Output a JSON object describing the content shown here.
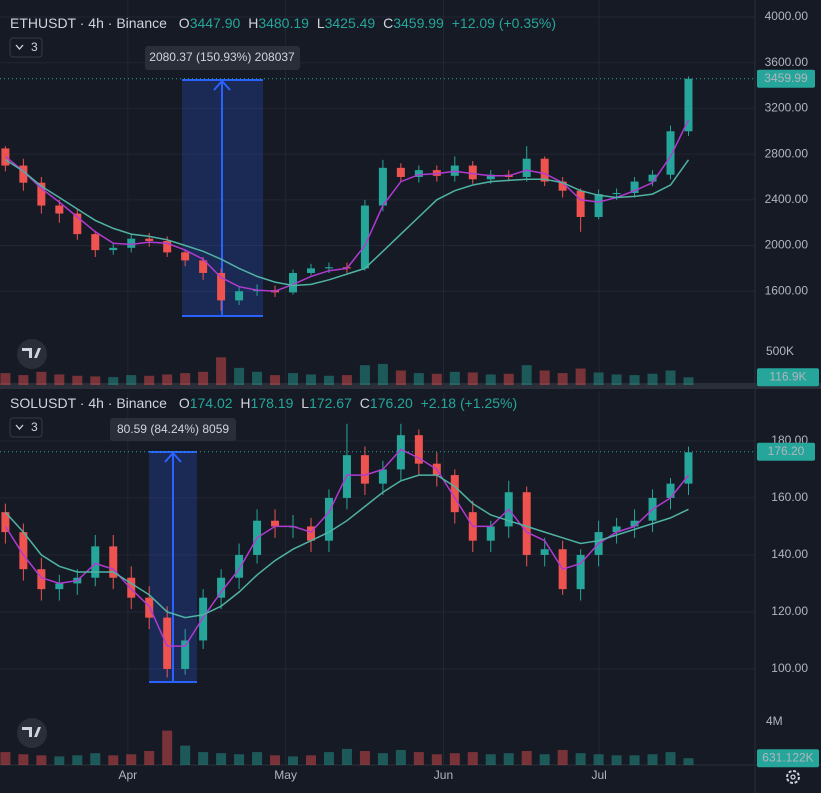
{
  "chart_data": [
    {
      "type": "candlestick",
      "header": {
        "symbol": "ETHUSDT · 4h · Binance",
        "open_label": "O",
        "open": "3447.90",
        "high_label": "H",
        "high": "3480.19",
        "low_label": "L",
        "low": "3425.49",
        "close_label": "C",
        "close": "3459.99",
        "change": "+12.09 (+0.35%)"
      },
      "indicator_count": "3",
      "measure": "2080.37 (150.93%) 208037",
      "up_color": "#26a69a",
      "down_color": "#ef5350",
      "xlim": [
        -0.3,
        41.7
      ],
      "x": [
        0,
        1,
        2,
        3,
        4,
        5,
        6,
        7,
        8,
        9,
        10,
        11,
        12,
        13,
        14,
        15,
        16,
        17,
        18,
        19,
        20,
        21,
        22,
        23,
        24,
        25,
        26,
        27,
        28,
        29,
        30,
        31,
        32,
        33,
        34,
        35,
        36,
        37,
        38
      ],
      "open": [
        2850,
        2700,
        2550,
        2350,
        2280,
        2100,
        1960,
        1980,
        2060,
        2040,
        1940,
        1870,
        1760,
        1520,
        1600,
        1610,
        1590,
        1760,
        1800,
        1810,
        1800,
        2350,
        2680,
        2600,
        2660,
        2610,
        2700,
        2580,
        2620,
        2600,
        2760,
        2560,
        2480,
        2250,
        2450,
        2460,
        2560,
        2620,
        3000
      ],
      "high": [
        2870,
        2760,
        2600,
        2400,
        2320,
        2130,
        2020,
        2100,
        2110,
        2080,
        1960,
        1900,
        1800,
        1640,
        1660,
        1650,
        1790,
        1840,
        1850,
        1850,
        2400,
        2750,
        2720,
        2700,
        2700,
        2780,
        2740,
        2660,
        2660,
        2870,
        2780,
        2600,
        2500,
        2490,
        2500,
        2600,
        2660,
        3050,
        3480
      ],
      "low": [
        2650,
        2480,
        2280,
        2200,
        2050,
        1900,
        1920,
        1940,
        1990,
        1900,
        1820,
        1700,
        1430,
        1480,
        1560,
        1550,
        1570,
        1740,
        1760,
        1760,
        1780,
        2300,
        2560,
        2550,
        2560,
        2560,
        2540,
        2540,
        2560,
        2560,
        2520,
        2420,
        2120,
        2230,
        2400,
        2420,
        2520,
        2580,
        2960
      ],
      "close": [
        2700,
        2550,
        2350,
        2280,
        2100,
        1960,
        1980,
        2060,
        2040,
        1940,
        1870,
        1760,
        1520,
        1600,
        1610,
        1590,
        1760,
        1800,
        1810,
        1800,
        2350,
        2680,
        2600,
        2660,
        2610,
        2700,
        2580,
        2620,
        2600,
        2760,
        2560,
        2480,
        2250,
        2450,
        2460,
        2560,
        2620,
        3000,
        3460
      ],
      "overlays": [
        {
          "color": "#b03bd1",
          "values": [
            2780,
            2650,
            2500,
            2380,
            2250,
            2120,
            2020,
            2010,
            2030,
            2020,
            1960,
            1880,
            1720,
            1640,
            1610,
            1600,
            1660,
            1730,
            1780,
            1800,
            2000,
            2350,
            2560,
            2620,
            2630,
            2650,
            2630,
            2610,
            2610,
            2660,
            2630,
            2550,
            2400,
            2380,
            2420,
            2480,
            2550,
            2780,
            3100
          ]
        },
        {
          "color": "#4fb3a4",
          "values": [
            2750,
            2650,
            2520,
            2420,
            2320,
            2220,
            2150,
            2100,
            2080,
            2050,
            2000,
            1950,
            1880,
            1800,
            1730,
            1680,
            1650,
            1660,
            1700,
            1750,
            1800,
            1950,
            2100,
            2250,
            2400,
            2480,
            2530,
            2560,
            2570,
            2580,
            2580,
            2550,
            2480,
            2440,
            2420,
            2430,
            2450,
            2530,
            2750
          ]
        }
      ],
      "ylim": [
        1217,
        4149
      ],
      "yticks": [
        {
          "value": 4000,
          "label": "4000.00"
        },
        {
          "value": 3600,
          "label": "3600.00"
        },
        {
          "value": 3200,
          "label": "3200.00"
        },
        {
          "value": 2800,
          "label": "2800.00"
        },
        {
          "value": 2400,
          "label": "2400.00"
        },
        {
          "value": 2000,
          "label": "2000.00"
        },
        {
          "value": 1600,
          "label": "1600.00"
        }
      ],
      "last_price": {
        "value": 3459.99,
        "label": "3459.99"
      },
      "volume": [
        180000,
        150000,
        200000,
        160000,
        140000,
        130000,
        120000,
        150000,
        140000,
        160000,
        180000,
        200000,
        420000,
        260000,
        200000,
        150000,
        180000,
        160000,
        140000,
        150000,
        300000,
        320000,
        220000,
        180000,
        170000,
        200000,
        190000,
        160000,
        170000,
        300000,
        220000,
        180000,
        250000,
        190000,
        160000,
        150000,
        170000,
        220000,
        116900
      ],
      "volume_ylim": [
        0,
        758000
      ],
      "volume_yticks": [
        {
          "value": 500000,
          "label": "500K"
        }
      ],
      "last_volume": {
        "value": 116900,
        "label": "116.9K"
      }
    },
    {
      "type": "candlestick",
      "header": {
        "symbol": "SOLUSDT · 4h · Binance",
        "open_label": "O",
        "open": "174.02",
        "high_label": "H",
        "high": "178.19",
        "low_label": "L",
        "low": "172.67",
        "close_label": "C",
        "close": "176.20",
        "change": "+2.18 (+1.25%)"
      },
      "indicator_count": "3",
      "measure": "80.59 (84.24%) 8059",
      "up_color": "#26a69a",
      "down_color": "#ef5350",
      "xlim": [
        -0.3,
        41.7
      ],
      "xticks": [
        {
          "value": 6.81,
          "label": "Apr"
        },
        {
          "value": 15.59,
          "label": "May"
        },
        {
          "value": 24.37,
          "label": "Jun"
        },
        {
          "value": 33.03,
          "label": "Jul"
        }
      ],
      "x": [
        0,
        1,
        2,
        3,
        4,
        5,
        6,
        7,
        8,
        9,
        10,
        11,
        12,
        13,
        14,
        15,
        16,
        17,
        18,
        19,
        20,
        21,
        22,
        23,
        24,
        25,
        26,
        27,
        28,
        29,
        30,
        31,
        32,
        33,
        34,
        35,
        36,
        37,
        38
      ],
      "open": [
        155,
        148,
        135,
        128,
        130,
        132,
        143,
        132,
        125,
        118,
        100,
        110,
        125,
        132,
        140,
        152,
        150,
        150,
        145,
        160,
        175,
        165,
        170,
        182,
        172,
        168,
        155,
        145,
        150,
        162,
        140,
        142,
        128,
        140,
        148,
        150,
        152,
        160,
        165
      ],
      "high": [
        158,
        151,
        139,
        133,
        135,
        147,
        147,
        136,
        129,
        122,
        114,
        128,
        135,
        144,
        156,
        156,
        154,
        153,
        163,
        186,
        178,
        173,
        186,
        184,
        176,
        170,
        159,
        152,
        166,
        164,
        146,
        145,
        142,
        152,
        153,
        156,
        163,
        167,
        178
      ],
      "low": [
        144,
        131,
        124,
        124,
        126,
        129,
        128,
        121,
        114,
        97,
        98,
        107,
        121,
        128,
        137,
        146,
        146,
        141,
        141,
        156,
        161,
        161,
        166,
        168,
        164,
        151,
        141,
        141,
        146,
        136,
        136,
        126,
        124,
        136,
        144,
        146,
        148,
        156,
        161
      ],
      "close": [
        148,
        135,
        128,
        130,
        132,
        143,
        132,
        125,
        118,
        100,
        110,
        125,
        132,
        140,
        152,
        150,
        150,
        145,
        160,
        175,
        165,
        170,
        182,
        172,
        168,
        155,
        145,
        150,
        162,
        140,
        142,
        128,
        140,
        148,
        150,
        152,
        160,
        165,
        176
      ],
      "overlays": [
        {
          "color": "#b03bd1",
          "values": [
            150,
            140,
            132,
            130,
            131,
            137,
            135,
            128,
            122,
            108,
            108,
            118,
            127,
            135,
            146,
            150,
            150,
            148,
            155,
            168,
            168,
            170,
            177,
            174,
            170,
            160,
            150,
            150,
            156,
            148,
            145,
            135,
            137,
            144,
            148,
            150,
            156,
            160,
            168
          ]
        },
        {
          "color": "#4fb3a4",
          "values": [
            155,
            148,
            140,
            136,
            134,
            134,
            134,
            130,
            126,
            120,
            118,
            119,
            122,
            127,
            133,
            138,
            142,
            145,
            148,
            152,
            157,
            162,
            166,
            168,
            168,
            164,
            158,
            154,
            152,
            150,
            148,
            146,
            144,
            145,
            147,
            149,
            151,
            153,
            156
          ]
        }
      ],
      "ylim": [
        84.9,
        196.8
      ],
      "yticks": [
        {
          "value": 180,
          "label": "180.00"
        },
        {
          "value": 160,
          "label": "160.00"
        },
        {
          "value": 140,
          "label": "140.00"
        },
        {
          "value": 120,
          "label": "120.00"
        },
        {
          "value": 100,
          "label": "100.00"
        }
      ],
      "last_price": {
        "value": 176.2,
        "label": "176.20"
      },
      "volume": [
        1200000,
        1000000,
        900000,
        800000,
        900000,
        1100000,
        900000,
        1000000,
        1300000,
        3200000,
        1800000,
        1200000,
        1100000,
        1000000,
        1200000,
        900000,
        800000,
        900000,
        1200000,
        1500000,
        1300000,
        1100000,
        1400000,
        1200000,
        1000000,
        1100000,
        1200000,
        1000000,
        1100000,
        1300000,
        1000000,
        1400000,
        1100000,
        1000000,
        900000,
        900000,
        1000000,
        1200000,
        631122
      ],
      "volume_ylim": [
        0,
        4930000
      ],
      "volume_yticks": [
        {
          "value": 4000000,
          "label": "4M"
        }
      ],
      "last_volume": {
        "value": 631122,
        "label": "631.122K"
      }
    }
  ]
}
